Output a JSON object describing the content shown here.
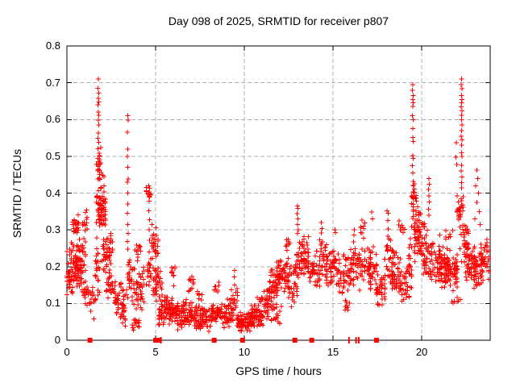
{
  "chart_data": {
    "type": "scatter",
    "title": "Day 098 of 2025, SRMTID for receiver p807",
    "xlabel": "GPS time / hours",
    "ylabel": "SRMTID / TECUs",
    "xlim": [
      0,
      23.86
    ],
    "ylim": [
      0,
      0.8
    ],
    "x_ticks": [
      0,
      5,
      10,
      15,
      20
    ],
    "x_tick_labels": [
      "0",
      "5",
      "10",
      "15",
      "20"
    ],
    "y_ticks": [
      0,
      0.1,
      0.2,
      0.3,
      0.4,
      0.5,
      0.6,
      0.7,
      0.8
    ],
    "y_tick_labels": [
      "0",
      "0.1",
      "0.2",
      "0.3",
      "0.4",
      "0.5",
      "0.6",
      "0.7",
      "0.8"
    ],
    "grid": true,
    "legend": "none",
    "marker": "plus",
    "colors": {
      "marker": "#ff0000",
      "grid": "#b0b0b0",
      "frame": "#000000",
      "background": "#ffffff"
    },
    "clusters": [
      [
        0.0,
        0.2,
        0.1,
        0.25,
        22
      ],
      [
        0.15,
        0.55,
        0.1,
        0.3,
        40
      ],
      [
        0.3,
        0.62,
        0.285,
        0.345,
        26
      ],
      [
        0.45,
        0.85,
        0.14,
        0.23,
        42
      ],
      [
        0.55,
        1.05,
        0.17,
        0.3,
        34
      ],
      [
        0.85,
        1.12,
        0.29,
        0.36,
        12
      ],
      [
        0.9,
        1.25,
        0.08,
        0.18,
        20
      ],
      [
        1.2,
        1.6,
        0.05,
        0.16,
        16
      ],
      [
        1.6,
        1.82,
        0.1,
        0.3,
        24
      ],
      [
        1.65,
        1.98,
        0.3,
        0.43,
        42
      ],
      [
        1.7,
        1.92,
        0.43,
        0.53,
        26
      ],
      [
        1.95,
        2.2,
        0.28,
        0.46,
        26
      ],
      [
        2.02,
        2.55,
        0.17,
        0.3,
        50
      ],
      [
        2.2,
        2.7,
        0.11,
        0.19,
        28
      ],
      [
        2.6,
        3.3,
        0.055,
        0.17,
        40
      ],
      [
        3.0,
        3.35,
        0.035,
        0.1,
        14
      ],
      [
        3.35,
        3.62,
        0.1,
        0.245,
        22
      ],
      [
        3.6,
        4.4,
        0.075,
        0.22,
        50
      ],
      [
        3.7,
        4.1,
        0.02,
        0.07,
        16
      ],
      [
        3.85,
        4.25,
        0.22,
        0.27,
        10
      ],
      [
        4.5,
        4.7,
        0.38,
        0.425,
        10
      ],
      [
        4.5,
        4.78,
        0.13,
        0.22,
        14
      ],
      [
        4.75,
        5.12,
        0.2,
        0.315,
        30
      ],
      [
        4.85,
        5.4,
        0.1,
        0.21,
        40
      ],
      [
        5.2,
        6.05,
        0.03,
        0.13,
        85
      ],
      [
        5.85,
        6.12,
        0.14,
        0.225,
        12
      ],
      [
        6.05,
        7.05,
        0.025,
        0.115,
        90
      ],
      [
        6.85,
        7.12,
        0.125,
        0.195,
        11
      ],
      [
        7.05,
        8.2,
        0.02,
        0.105,
        100
      ],
      [
        7.35,
        7.65,
        0.105,
        0.14,
        8
      ],
      [
        8.2,
        9.35,
        0.03,
        0.115,
        85
      ],
      [
        8.3,
        8.62,
        0.115,
        0.16,
        10
      ],
      [
        9.3,
        9.62,
        0.05,
        0.155,
        20
      ],
      [
        9.6,
        10.45,
        0.02,
        0.085,
        80
      ],
      [
        10.35,
        11.15,
        0.03,
        0.1,
        65
      ],
      [
        10.7,
        11.0,
        0.1,
        0.125,
        7
      ],
      [
        11.05,
        11.55,
        0.05,
        0.15,
        35
      ],
      [
        11.5,
        12.1,
        0.04,
        0.1,
        18
      ],
      [
        11.4,
        11.95,
        0.095,
        0.2,
        45
      ],
      [
        11.8,
        12.45,
        0.125,
        0.235,
        50
      ],
      [
        12.3,
        12.55,
        0.235,
        0.285,
        9
      ],
      [
        12.4,
        13.0,
        0.08,
        0.215,
        40
      ],
      [
        12.9,
        13.35,
        0.15,
        0.285,
        32
      ],
      [
        13.2,
        13.62,
        0.19,
        0.3,
        26
      ],
      [
        13.55,
        14.25,
        0.13,
        0.25,
        50
      ],
      [
        14.22,
        14.68,
        0.165,
        0.285,
        30
      ],
      [
        14.6,
        15.35,
        0.14,
        0.26,
        50
      ],
      [
        15.3,
        16.05,
        0.115,
        0.25,
        45
      ],
      [
        15.7,
        16.0,
        0.075,
        0.115,
        9
      ],
      [
        16.0,
        16.45,
        0.14,
        0.28,
        28
      ],
      [
        16.5,
        16.8,
        0.27,
        0.335,
        9
      ],
      [
        16.4,
        17.15,
        0.125,
        0.265,
        45
      ],
      [
        17.0,
        17.5,
        0.115,
        0.26,
        30
      ],
      [
        17.4,
        17.95,
        0.08,
        0.185,
        36
      ],
      [
        17.92,
        18.4,
        0.15,
        0.3,
        36
      ],
      [
        18.3,
        18.8,
        0.115,
        0.24,
        36
      ],
      [
        18.7,
        19.05,
        0.28,
        0.33,
        9
      ],
      [
        18.68,
        19.3,
        0.09,
        0.22,
        40
      ],
      [
        19.25,
        19.5,
        0.12,
        0.3,
        20
      ],
      [
        19.38,
        19.68,
        0.335,
        0.43,
        22
      ],
      [
        19.45,
        19.9,
        0.27,
        0.38,
        30
      ],
      [
        19.6,
        20.15,
        0.195,
        0.32,
        40
      ],
      [
        19.95,
        20.3,
        0.275,
        0.325,
        12
      ],
      [
        20.1,
        20.6,
        0.145,
        0.28,
        36
      ],
      [
        20.55,
        21.4,
        0.125,
        0.27,
        70
      ],
      [
        20.9,
        21.8,
        0.26,
        0.3,
        8
      ],
      [
        21.35,
        22.05,
        0.125,
        0.25,
        75
      ],
      [
        21.6,
        22.2,
        0.085,
        0.125,
        7
      ],
      [
        21.95,
        22.35,
        0.3,
        0.42,
        26
      ],
      [
        22.15,
        22.65,
        0.195,
        0.33,
        40
      ],
      [
        22.5,
        23.05,
        0.145,
        0.27,
        50
      ],
      [
        22.95,
        23.45,
        0.135,
        0.25,
        40
      ],
      [
        23.35,
        23.8,
        0.16,
        0.28,
        40
      ]
    ],
    "points": [
      [
        1.78,
        0.71
      ],
      [
        1.75,
        0.685
      ],
      [
        1.8,
        0.672
      ],
      [
        1.77,
        0.658
      ],
      [
        1.79,
        0.648
      ],
      [
        1.76,
        0.64
      ],
      [
        1.78,
        0.62
      ],
      [
        1.8,
        0.612
      ],
      [
        1.77,
        0.598
      ],
      [
        1.79,
        0.585
      ],
      [
        1.78,
        0.563
      ],
      [
        1.76,
        0.549
      ],
      [
        1.8,
        0.538
      ],
      [
        3.42,
        0.61
      ],
      [
        3.45,
        0.598
      ],
      [
        3.4,
        0.565
      ],
      [
        3.44,
        0.52
      ],
      [
        3.41,
        0.5
      ],
      [
        3.43,
        0.47
      ],
      [
        3.46,
        0.438
      ],
      [
        3.4,
        0.43
      ],
      [
        3.42,
        0.4
      ],
      [
        3.44,
        0.37
      ],
      [
        3.41,
        0.345
      ],
      [
        3.43,
        0.315
      ],
      [
        3.45,
        0.29
      ],
      [
        3.4,
        0.268
      ],
      [
        3.42,
        0.248
      ],
      [
        4.62,
        0.42
      ],
      [
        4.65,
        0.413
      ],
      [
        4.63,
        0.403
      ],
      [
        4.66,
        0.392
      ],
      [
        4.64,
        0.378
      ],
      [
        4.62,
        0.352
      ],
      [
        4.65,
        0.328
      ],
      [
        4.63,
        0.3
      ],
      [
        4.66,
        0.272
      ],
      [
        4.64,
        0.24
      ],
      [
        4.62,
        0.21
      ],
      [
        9.45,
        0.19
      ],
      [
        9.42,
        0.172
      ],
      [
        13.0,
        0.365
      ],
      [
        13.03,
        0.358
      ],
      [
        12.98,
        0.344
      ],
      [
        13.02,
        0.33
      ],
      [
        13.0,
        0.314
      ],
      [
        13.04,
        0.3
      ],
      [
        12.99,
        0.29
      ],
      [
        14.35,
        0.32
      ],
      [
        14.38,
        0.304
      ],
      [
        14.33,
        0.292
      ],
      [
        15.1,
        0.3
      ],
      [
        15.13,
        0.293
      ],
      [
        16.2,
        0.3
      ],
      [
        16.17,
        0.286
      ],
      [
        17.18,
        0.348
      ],
      [
        17.22,
        0.33
      ],
      [
        18.05,
        0.352
      ],
      [
        18.1,
        0.345
      ],
      [
        18.08,
        0.325
      ],
      [
        18.12,
        0.302
      ],
      [
        19.5,
        0.695
      ],
      [
        19.48,
        0.68
      ],
      [
        19.52,
        0.665
      ],
      [
        19.49,
        0.654
      ],
      [
        19.51,
        0.645
      ],
      [
        19.5,
        0.636
      ],
      [
        19.48,
        0.61
      ],
      [
        19.52,
        0.6
      ],
      [
        19.5,
        0.575
      ],
      [
        19.49,
        0.551
      ],
      [
        19.51,
        0.54
      ],
      [
        19.5,
        0.502
      ],
      [
        19.52,
        0.494
      ],
      [
        19.48,
        0.475
      ],
      [
        19.5,
        0.455
      ],
      [
        19.51,
        0.432
      ],
      [
        20.4,
        0.44
      ],
      [
        20.42,
        0.424
      ],
      [
        20.38,
        0.41
      ],
      [
        20.41,
        0.392
      ],
      [
        20.43,
        0.376
      ],
      [
        20.39,
        0.356
      ],
      [
        20.41,
        0.34
      ],
      [
        21.95,
        0.537
      ],
      [
        21.93,
        0.498
      ],
      [
        21.97,
        0.478
      ],
      [
        22.25,
        0.71
      ],
      [
        22.23,
        0.695
      ],
      [
        22.27,
        0.684
      ],
      [
        22.24,
        0.665
      ],
      [
        22.26,
        0.654
      ],
      [
        22.25,
        0.645
      ],
      [
        22.23,
        0.634
      ],
      [
        22.27,
        0.624
      ],
      [
        22.25,
        0.612
      ],
      [
        22.24,
        0.6
      ],
      [
        22.26,
        0.585
      ],
      [
        22.25,
        0.57
      ],
      [
        22.23,
        0.555
      ],
      [
        22.27,
        0.545
      ],
      [
        22.25,
        0.53
      ],
      [
        22.24,
        0.51
      ],
      [
        22.26,
        0.5
      ],
      [
        22.25,
        0.476
      ],
      [
        22.23,
        0.46
      ],
      [
        22.27,
        0.444
      ],
      [
        22.25,
        0.428
      ],
      [
        22.24,
        0.414
      ],
      [
        23.1,
        0.462
      ],
      [
        23.15,
        0.44
      ],
      [
        23.05,
        0.42
      ],
      [
        23.2,
        0.4
      ],
      [
        23.1,
        0.375
      ],
      [
        23.25,
        0.35
      ],
      [
        23.0,
        0.33
      ],
      [
        23.3,
        0.315
      ]
    ],
    "baseline_squares": [
      1.3,
      5.0,
      5.12,
      8.3,
      9.9,
      12.85,
      13.8,
      17.45
    ],
    "baseline_ticks": [
      5.3,
      15.9,
      16.3,
      16.45
    ]
  }
}
